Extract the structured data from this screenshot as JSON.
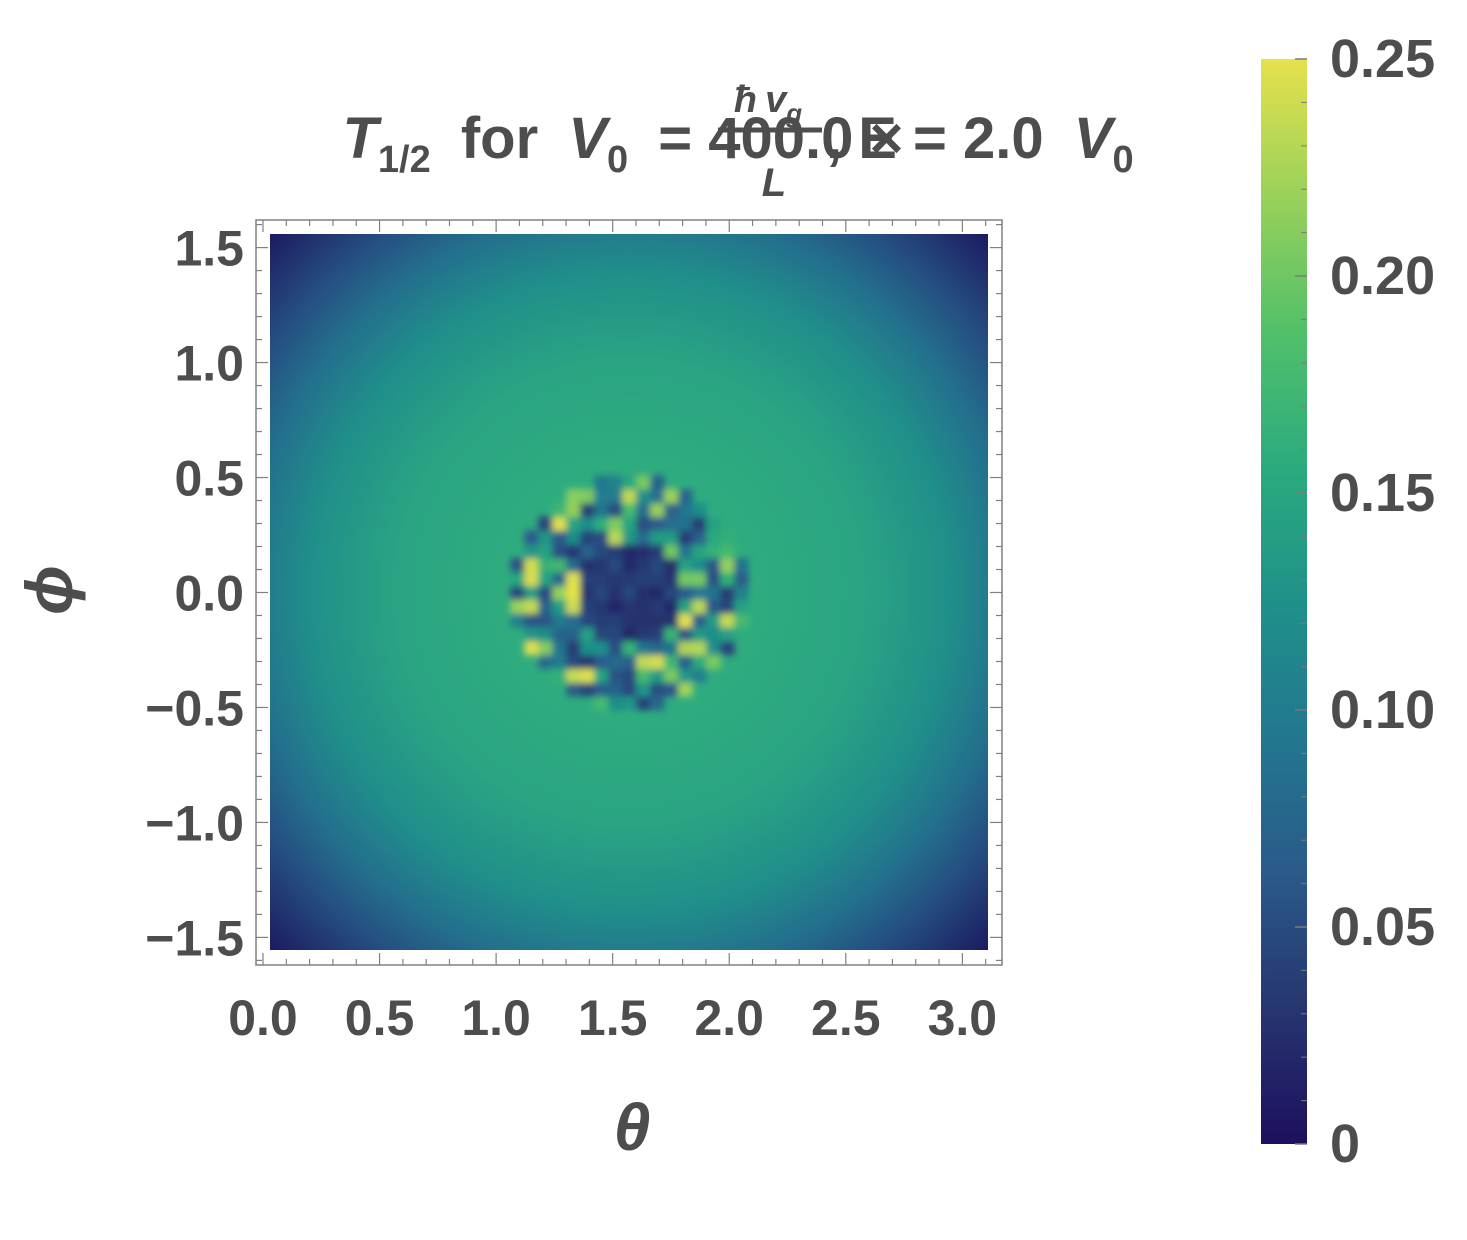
{
  "chart_data": {
    "type": "heatmap",
    "title": {
      "t_sym": "T",
      "t_sub": "1/2",
      "for_text": "for",
      "v_sym": "V",
      "v_sub": "0",
      "eq1": "= 400.0 ×",
      "frac_num_hbar": "ħ",
      "frac_num_v": "v",
      "frac_num_sub": "g",
      "frac_den": "L",
      "eq2": ", E = 2.0",
      "v2_sym": "V",
      "v2_sub": "0"
    },
    "xlabel": "θ",
    "ylabel": "ϕ",
    "xlim": [
      -0.03,
      3.17
    ],
    "ylim": [
      -1.62,
      1.62
    ],
    "data_extent": {
      "x": [
        0.0,
        3.1416
      ],
      "y": [
        -1.5708,
        1.5708
      ]
    },
    "xticks": [
      "0.0",
      "0.5",
      "1.0",
      "1.5",
      "2.0",
      "2.5",
      "3.0"
    ],
    "xtick_values": [
      0.0,
      0.5,
      1.0,
      1.5,
      2.0,
      2.5,
      3.0
    ],
    "yticks": [
      "1.5",
      "1.0",
      "0.5",
      "0.0",
      "−0.5",
      "−1.0",
      "−1.5"
    ],
    "ytick_values": [
      1.5,
      1.0,
      0.5,
      0.0,
      -0.5,
      -1.0,
      -1.5
    ],
    "colorbar": {
      "range": [
        0,
        0.25
      ],
      "ticks": [
        "0",
        "0.05",
        "0.10",
        "0.15",
        "0.20",
        "0.25"
      ],
      "tick_values": [
        0,
        0.05,
        0.1,
        0.15,
        0.2,
        0.25
      ],
      "colormap": "viridis"
    },
    "features": {
      "plateau_value": 0.15,
      "edge_value": 0.01,
      "central_region": {
        "center": [
          1.5708,
          0.0
        ],
        "radius": 0.5,
        "core_value": 0.02,
        "peak_value": 0.24
      }
    }
  },
  "colors": {
    "text": "#4d4d4d",
    "frame": "#808080",
    "viridis_low": "#1d0f5e",
    "viridis_mid": "#1f9e89",
    "viridis_high": "#e6e14c"
  }
}
